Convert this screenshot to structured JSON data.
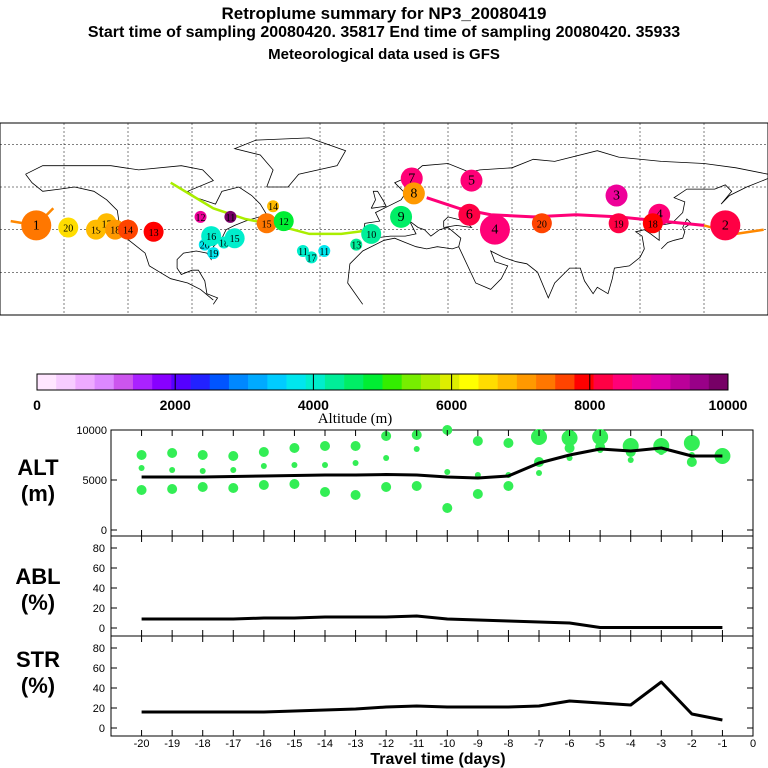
{
  "header": {
    "title": "Retroplume summary for NP3_20080419",
    "subtitle": "Start time of sampling 20080420. 35817     End time of sampling 20080420. 35933",
    "met_note": "Meteorological data used is GFS"
  },
  "colorbar": {
    "label": "Altitude (m)",
    "ticks": [
      "0",
      "2000",
      "4000",
      "6000",
      "8000",
      "10000"
    ],
    "range": [
      0,
      10000
    ],
    "colors": [
      "#ffe6ff",
      "#f7ccff",
      "#eeaaff",
      "#dd88ff",
      "#cc55ee",
      "#aa22ff",
      "#8800ff",
      "#5500ff",
      "#2222ff",
      "#0055ff",
      "#0088ff",
      "#00aaff",
      "#00ccff",
      "#00e6ee",
      "#00eecc",
      "#00ee99",
      "#00ee66",
      "#00ee33",
      "#33ee00",
      "#77ee00",
      "#aaee00",
      "#ddee00",
      "#ffff00",
      "#ffdd00",
      "#ffbb00",
      "#ff9900",
      "#ff7700",
      "#ff4400",
      "#ff0000",
      "#ff0044",
      "#ff0077",
      "#ee0099",
      "#dd00aa",
      "#bb0099",
      "#990088",
      "#770066"
    ]
  },
  "map": {
    "plume_points": [
      {
        "day": "1",
        "lon": -163,
        "lat": 42,
        "alt": 7300
      },
      {
        "day": "20",
        "lon": -148,
        "lat": 41,
        "alt": 6500
      },
      {
        "day": "19",
        "lon": -135,
        "lat": 40,
        "alt": 6700
      },
      {
        "day": "17",
        "lon": -130,
        "lat": 43,
        "alt": 6900
      },
      {
        "day": "18",
        "lon": -126,
        "lat": 40,
        "alt": 7200
      },
      {
        "day": "14",
        "lon": -120,
        "lat": 40,
        "alt": 7700
      },
      {
        "day": "13",
        "lon": -108,
        "lat": 39,
        "alt": 7800
      },
      {
        "day": "12",
        "lon": -86,
        "lat": 46,
        "alt": 8700
      },
      {
        "day": "20",
        "lon": -84,
        "lat": 33,
        "alt": 3800
      },
      {
        "day": "19",
        "lon": -80,
        "lat": 29,
        "alt": 3700
      },
      {
        "day": "16",
        "lon": -81,
        "lat": 37,
        "alt": 3900
      },
      {
        "day": "18",
        "lon": -75,
        "lat": 34,
        "alt": 3900
      },
      {
        "day": "15",
        "lon": -70,
        "lat": 36,
        "alt": 4000
      },
      {
        "day": "11",
        "lon": -72,
        "lat": 46,
        "alt": 9800
      },
      {
        "day": "15",
        "lon": -55,
        "lat": 43,
        "alt": 7300
      },
      {
        "day": "14",
        "lon": -52,
        "lat": 51,
        "alt": 6900
      },
      {
        "day": "12",
        "lon": -47,
        "lat": 44,
        "alt": 4800
      },
      {
        "day": "11",
        "lon": -38,
        "lat": 30,
        "alt": 4000
      },
      {
        "day": "17",
        "lon": -34,
        "lat": 27,
        "alt": 3900
      },
      {
        "day": "11",
        "lon": -28,
        "lat": 30,
        "alt": 3800
      },
      {
        "day": "13",
        "lon": -13,
        "lat": 33,
        "alt": 4200
      },
      {
        "day": "10",
        "lon": -6,
        "lat": 38,
        "alt": 4400
      },
      {
        "day": "9",
        "lon": 8,
        "lat": 46,
        "alt": 4700
      },
      {
        "day": "7",
        "lon": 13,
        "lat": 64,
        "alt": 8500
      },
      {
        "day": "8",
        "lon": 14,
        "lat": 57,
        "alt": 7200
      },
      {
        "day": "5",
        "lon": 41,
        "lat": 63,
        "alt": 8600
      },
      {
        "day": "6",
        "lon": 40,
        "lat": 47,
        "alt": 8200
      },
      {
        "day": "4",
        "lon": 52,
        "lat": 40,
        "alt": 8500
      },
      {
        "day": "20",
        "lon": 74,
        "lat": 43,
        "alt": 7600
      },
      {
        "day": "3",
        "lon": 109,
        "lat": 56,
        "alt": 8800
      },
      {
        "day": "19",
        "lon": 110,
        "lat": 43,
        "alt": 8300
      },
      {
        "day": "4",
        "lon": 129,
        "lat": 47,
        "alt": 8600
      },
      {
        "day": "18",
        "lon": 126,
        "lat": 43,
        "alt": 8000
      },
      {
        "day": "2",
        "lon": 160,
        "lat": 42,
        "alt": 8200
      }
    ]
  },
  "panels": {
    "alt": {
      "label_top": "ALT",
      "label_bottom": "(m)",
      "yticks": [
        "0",
        "5000",
        "10000"
      ]
    },
    "abl": {
      "label_top": "ABL",
      "label_bottom": "(%)",
      "yticks": [
        "0",
        "20",
        "40",
        "60",
        "80"
      ]
    },
    "str": {
      "label_top": "STR",
      "label_bottom": "(%)",
      "yticks": [
        "0",
        "20",
        "40",
        "60",
        "80"
      ]
    },
    "xticks": [
      "-20",
      "-19",
      "-18",
      "-17",
      "-16",
      "-15",
      "-14",
      "-13",
      "-12",
      "-11",
      "-10",
      "-9",
      "-8",
      "-7",
      "-6",
      "-5",
      "-4",
      "-3",
      "-2",
      "-1",
      "0"
    ],
    "xlabel": "Travel time (days)"
  },
  "chart_data": [
    {
      "type": "line",
      "title": "ALT (m)",
      "xlabel": "Travel time (days)",
      "ylabel": "ALT (m)",
      "xlim": [
        -20,
        0
      ],
      "ylim": [
        0,
        10000
      ],
      "series": [
        {
          "name": "mean altitude",
          "x": [
            -20,
            -19,
            -18,
            -17,
            -16,
            -15,
            -14,
            -13,
            -12,
            -11,
            -10,
            -9,
            -8,
            -7,
            -6,
            -5,
            -4,
            -3,
            -2,
            -1
          ],
          "values": [
            5300,
            5300,
            5300,
            5350,
            5400,
            5450,
            5500,
            5500,
            5550,
            5500,
            5300,
            5200,
            5400,
            6700,
            7500,
            8100,
            7900,
            8200,
            7400,
            7400
          ]
        }
      ],
      "clusters": [
        {
          "x": -20,
          "alt": [
            7500,
            4000,
            6200
          ]
        },
        {
          "x": -19,
          "alt": [
            7700,
            4100,
            6000
          ]
        },
        {
          "x": -18,
          "alt": [
            7500,
            4300,
            5900
          ]
        },
        {
          "x": -17,
          "alt": [
            7400,
            4200,
            6000
          ]
        },
        {
          "x": -16,
          "alt": [
            7800,
            4500,
            6400
          ]
        },
        {
          "x": -15,
          "alt": [
            8200,
            4600,
            6500
          ]
        },
        {
          "x": -14,
          "alt": [
            8400,
            3800,
            6500
          ]
        },
        {
          "x": -13,
          "alt": [
            8400,
            3500,
            6700
          ]
        },
        {
          "x": -12,
          "alt": [
            9400,
            4300,
            7200
          ]
        },
        {
          "x": -11,
          "alt": [
            9500,
            4400,
            8100
          ]
        },
        {
          "x": -10,
          "alt": [
            10000,
            2200,
            5800
          ]
        },
        {
          "x": -9,
          "alt": [
            8900,
            3600,
            5500
          ]
        },
        {
          "x": -8,
          "alt": [
            8700,
            4400,
            5500
          ]
        },
        {
          "x": -7,
          "alt": [
            9300,
            6800,
            5700
          ]
        },
        {
          "x": -6,
          "alt": [
            9200,
            8200,
            7200
          ]
        },
        {
          "x": -5,
          "alt": [
            9300,
            8300,
            8000
          ]
        },
        {
          "x": -4,
          "alt": [
            8400,
            7800,
            7000
          ]
        },
        {
          "x": -3,
          "alt": [
            8400,
            8100,
            7800
          ]
        },
        {
          "x": -2,
          "alt": [
            8700,
            6800,
            7500
          ]
        },
        {
          "x": -1,
          "alt": [
            7400
          ]
        }
      ]
    },
    {
      "type": "line",
      "title": "ABL (%)",
      "xlabel": "Travel time (days)",
      "ylabel": "ABL (%)",
      "xlim": [
        -20,
        0
      ],
      "ylim": [
        0,
        90
      ],
      "series": [
        {
          "name": "ABL fraction",
          "x": [
            -20,
            -19,
            -18,
            -17,
            -16,
            -15,
            -14,
            -13,
            -12,
            -11,
            -10,
            -9,
            -8,
            -7,
            -6,
            -5,
            -4,
            -3,
            -2,
            -1
          ],
          "values": [
            9,
            9,
            9,
            9,
            10,
            10,
            11,
            11,
            11,
            12,
            9,
            8,
            7,
            6,
            5,
            0.5,
            0.5,
            0.5,
            0.5,
            0.5
          ]
        }
      ]
    },
    {
      "type": "line",
      "title": "STR (%)",
      "xlabel": "Travel time (days)",
      "ylabel": "STR (%)",
      "xlim": [
        -20,
        0
      ],
      "ylim": [
        0,
        90
      ],
      "series": [
        {
          "name": "stratospheric fraction",
          "x": [
            -20,
            -19,
            -18,
            -17,
            -16,
            -15,
            -14,
            -13,
            -12,
            -11,
            -10,
            -9,
            -8,
            -7,
            -6,
            -5,
            -4,
            -3,
            -2,
            -1
          ],
          "values": [
            16,
            16,
            16,
            16,
            16,
            17,
            18,
            19,
            21,
            22,
            21,
            21,
            21,
            22,
            27,
            25,
            23,
            46,
            14,
            8
          ]
        }
      ]
    }
  ]
}
